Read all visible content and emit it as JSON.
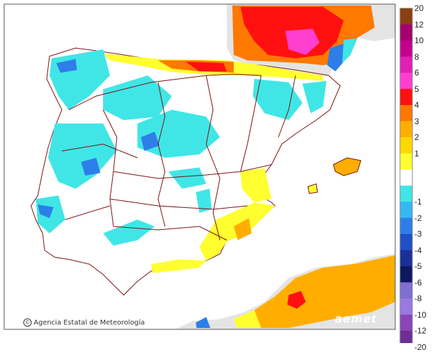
{
  "map": {
    "credit": "Agencia Estatal de Meteorología",
    "credit_symbol": "©",
    "logo_text": "aemet",
    "colors": {
      "sea": "#ffffff",
      "foreign_land": "#e4e4e4",
      "border_line": "#7a0d0d",
      "frame": "#555555"
    }
  },
  "legend": {
    "positive": [
      {
        "label": "20",
        "color": "#8c3f10"
      },
      {
        "label": "12",
        "color": "#a3006e"
      },
      {
        "label": "10",
        "color": "#c4008f"
      },
      {
        "label": "8",
        "color": "#e11fb4"
      },
      {
        "label": "6",
        "color": "#ff3fd0"
      },
      {
        "label": "5",
        "color": "#ff1010"
      },
      {
        "label": "4",
        "color": "#ff7800"
      },
      {
        "label": "3",
        "color": "#ffae00"
      },
      {
        "label": "2",
        "color": "#ffd800"
      },
      {
        "label": "1",
        "color": "#ffff30"
      }
    ],
    "neutral_color": "#ffffff",
    "negative": [
      {
        "label": "-1",
        "color": "#40e6e6"
      },
      {
        "label": "-2",
        "color": "#35b8f2"
      },
      {
        "label": "-3",
        "color": "#2e7ee8"
      },
      {
        "label": "-4",
        "color": "#1f50c6"
      },
      {
        "label": "-5",
        "color": "#1a2f98"
      },
      {
        "label": "-6",
        "color": "#0e1760"
      },
      {
        "label": "-8",
        "color": "#7f6fd0"
      },
      {
        "label": "-10",
        "color": "#9a7ae0"
      },
      {
        "label": "-12",
        "color": "#8a45b8"
      },
      {
        "label": "-20",
        "color": "#6e2f94"
      }
    ]
  }
}
